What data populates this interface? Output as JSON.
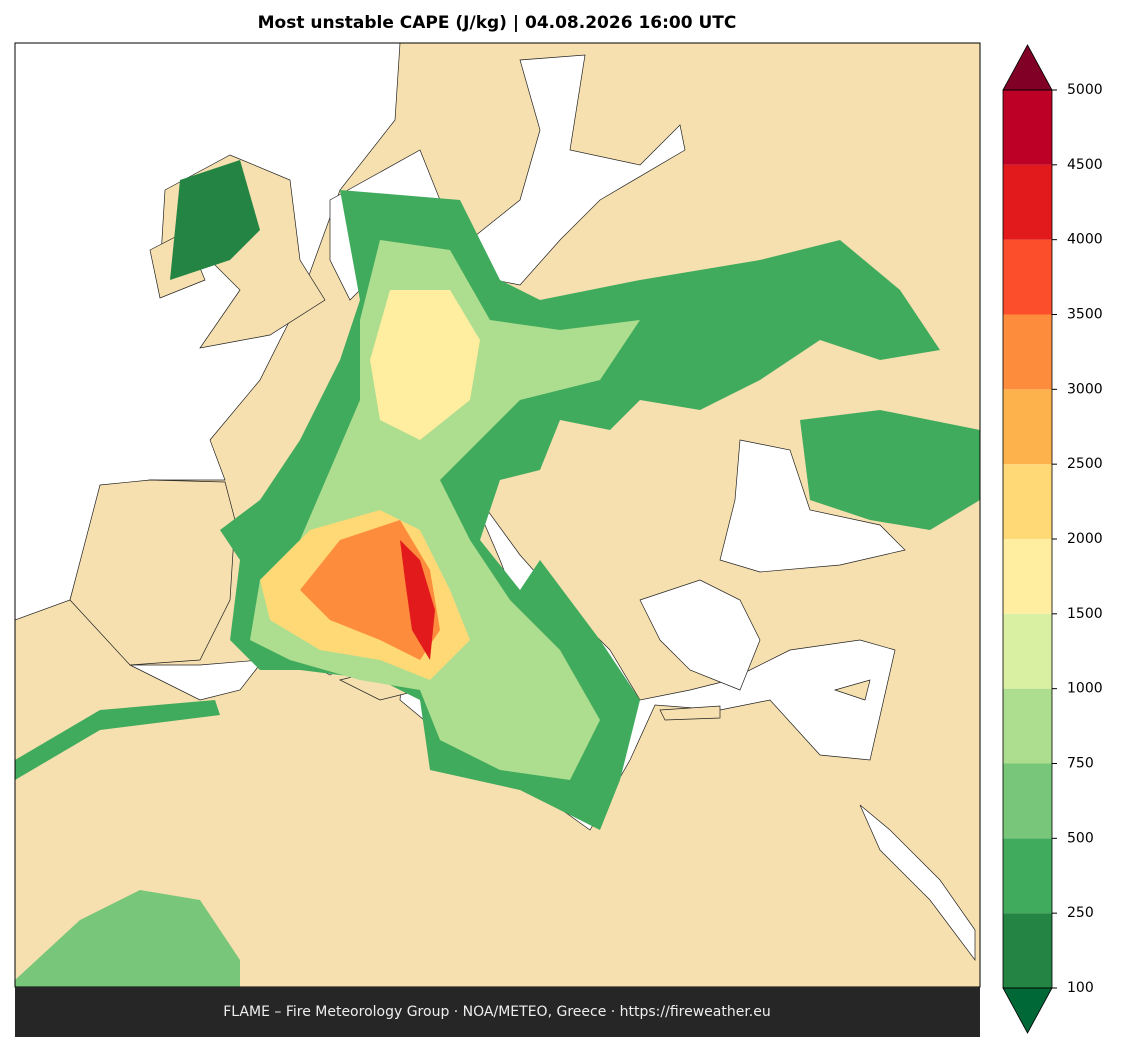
{
  "title": "Most unstable CAPE (J/kg)  |  04.08.2026 16:00 UTC",
  "footer": "FLAME – Fire Meteorology Group · NOA/METEO, Greece · https://fireweather.eu",
  "colorbar": {
    "levels": [
      100,
      250,
      500,
      750,
      1000,
      1500,
      2000,
      2500,
      3000,
      3500,
      4000,
      4500,
      5000
    ],
    "colors": [
      "#238443",
      "#41ab5d",
      "#78c679",
      "#addd8e",
      "#d9f0a3",
      "#ffeda0",
      "#fed976",
      "#feb24c",
      "#fd8d3c",
      "#fc4e2a",
      "#e31a1c",
      "#bd0026"
    ],
    "under_color": "#006837",
    "over_color": "#800026"
  }
}
